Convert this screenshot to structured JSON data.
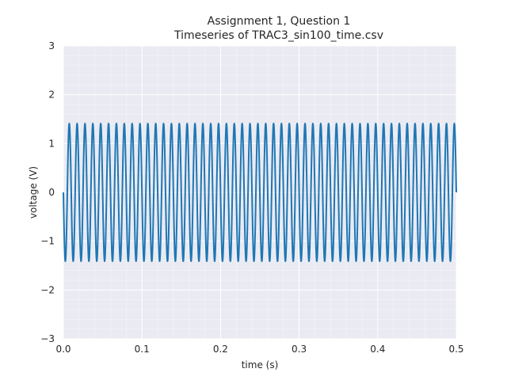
{
  "chart_data": {
    "type": "line",
    "title": "Assignment 1, Question 1",
    "subtitle": "Timeseries of TRAC3_sin100_time.csv",
    "xlabel": "time (s)",
    "ylabel": "voltage (V)",
    "xlim": [
      0,
      0.5
    ],
    "ylim": [
      -3,
      3
    ],
    "x_ticks": [
      0.0,
      0.1,
      0.2,
      0.3,
      0.4,
      0.5
    ],
    "x_tick_labels": [
      "0.0",
      "0.1",
      "0.2",
      "0.3",
      "0.4",
      "0.5"
    ],
    "y_ticks": [
      -3,
      -2,
      -1,
      0,
      1,
      2,
      3
    ],
    "y_tick_labels": [
      "−3",
      "−2",
      "−1",
      "0",
      "1",
      "2",
      "3"
    ],
    "grid": true,
    "minor_grid": true,
    "series": [
      {
        "function": "sine",
        "amplitude": 1.41,
        "frequency_hz": 100,
        "phase_deg": 180,
        "x_start": 0,
        "x_end": 0.5,
        "color": "#1f77b4"
      }
    ],
    "colors": {
      "background": "#eaeaf2",
      "grid": "#ffffff",
      "line": "#1f77b4"
    }
  }
}
